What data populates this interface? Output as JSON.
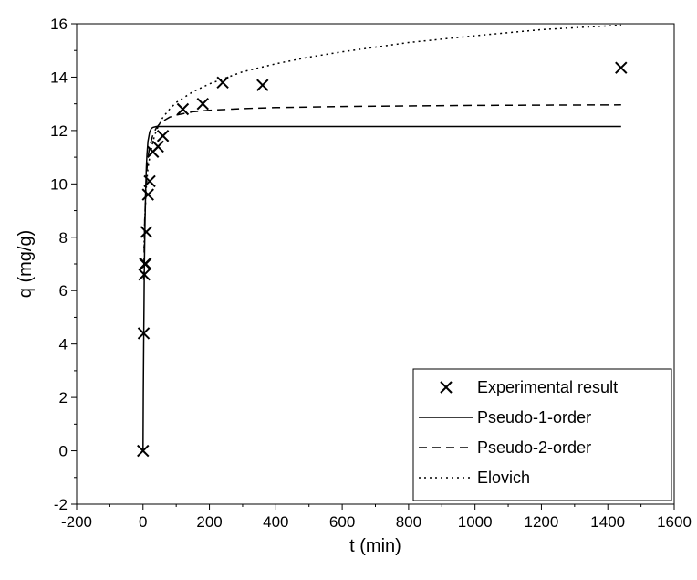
{
  "chart_data": {
    "type": "scatter",
    "title": "",
    "xlabel": "t (min)",
    "ylabel": "q (mg/g)",
    "xlim": [
      -200,
      1600
    ],
    "ylim": [
      -2,
      16
    ],
    "grid": false,
    "x_ticks": [
      "-200",
      "0",
      "200",
      "400",
      "600",
      "800",
      "1000",
      "1200",
      "1400",
      "1600"
    ],
    "y_ticks": [
      "-2",
      "0",
      "2",
      "4",
      "6",
      "8",
      "10",
      "12",
      "14",
      "16"
    ],
    "legend_position": "bottom-right",
    "series": [
      {
        "name": "Experimental result",
        "kind": "markers",
        "marker": "x",
        "x": [
          0,
          2,
          4,
          6,
          8,
          10,
          15,
          20,
          30,
          45,
          60,
          120,
          180,
          240,
          360,
          1440
        ],
        "y": [
          0,
          4.4,
          6.6,
          7.0,
          7.0,
          8.2,
          9.6,
          10.1,
          11.2,
          11.4,
          11.8,
          12.8,
          13.0,
          13.8,
          13.7,
          14.35
        ]
      },
      {
        "name": "Pseudo-1-order",
        "kind": "line",
        "dash": "solid",
        "x": [
          0,
          1,
          2,
          3,
          4,
          5,
          6,
          8,
          10,
          12,
          15,
          20,
          25,
          30,
          40,
          50,
          60,
          100,
          200,
          400,
          800,
          1440
        ],
        "y": [
          0,
          2.2,
          4.0,
          5.5,
          6.8,
          7.8,
          8.6,
          9.8,
          10.6,
          11.1,
          11.6,
          11.95,
          12.08,
          12.12,
          12.15,
          12.15,
          12.15,
          12.15,
          12.15,
          12.15,
          12.15,
          12.15
        ]
      },
      {
        "name": "Pseudo-2-order",
        "kind": "line",
        "dash": "dashed",
        "x": [
          2,
          5,
          10,
          15,
          20,
          30,
          40,
          50,
          60,
          80,
          100,
          150,
          200,
          300,
          400,
          600,
          800,
          1000,
          1200,
          1440
        ],
        "y": [
          6.4,
          8.6,
          10.3,
          11.0,
          11.4,
          11.85,
          12.1,
          12.25,
          12.35,
          12.5,
          12.58,
          12.7,
          12.76,
          12.82,
          12.86,
          12.9,
          12.92,
          12.94,
          12.95,
          12.96
        ]
      },
      {
        "name": "Elovich",
        "kind": "line",
        "dash": "dotted",
        "x": [
          3,
          5,
          10,
          15,
          20,
          30,
          40,
          60,
          80,
          100,
          150,
          200,
          300,
          400,
          500,
          600,
          800,
          1000,
          1200,
          1440
        ],
        "y": [
          7.6,
          8.6,
          9.9,
          10.6,
          11.0,
          11.6,
          12.0,
          12.5,
          12.8,
          13.05,
          13.45,
          13.75,
          14.2,
          14.5,
          14.75,
          14.95,
          15.3,
          15.55,
          15.78,
          15.95
        ]
      }
    ]
  }
}
